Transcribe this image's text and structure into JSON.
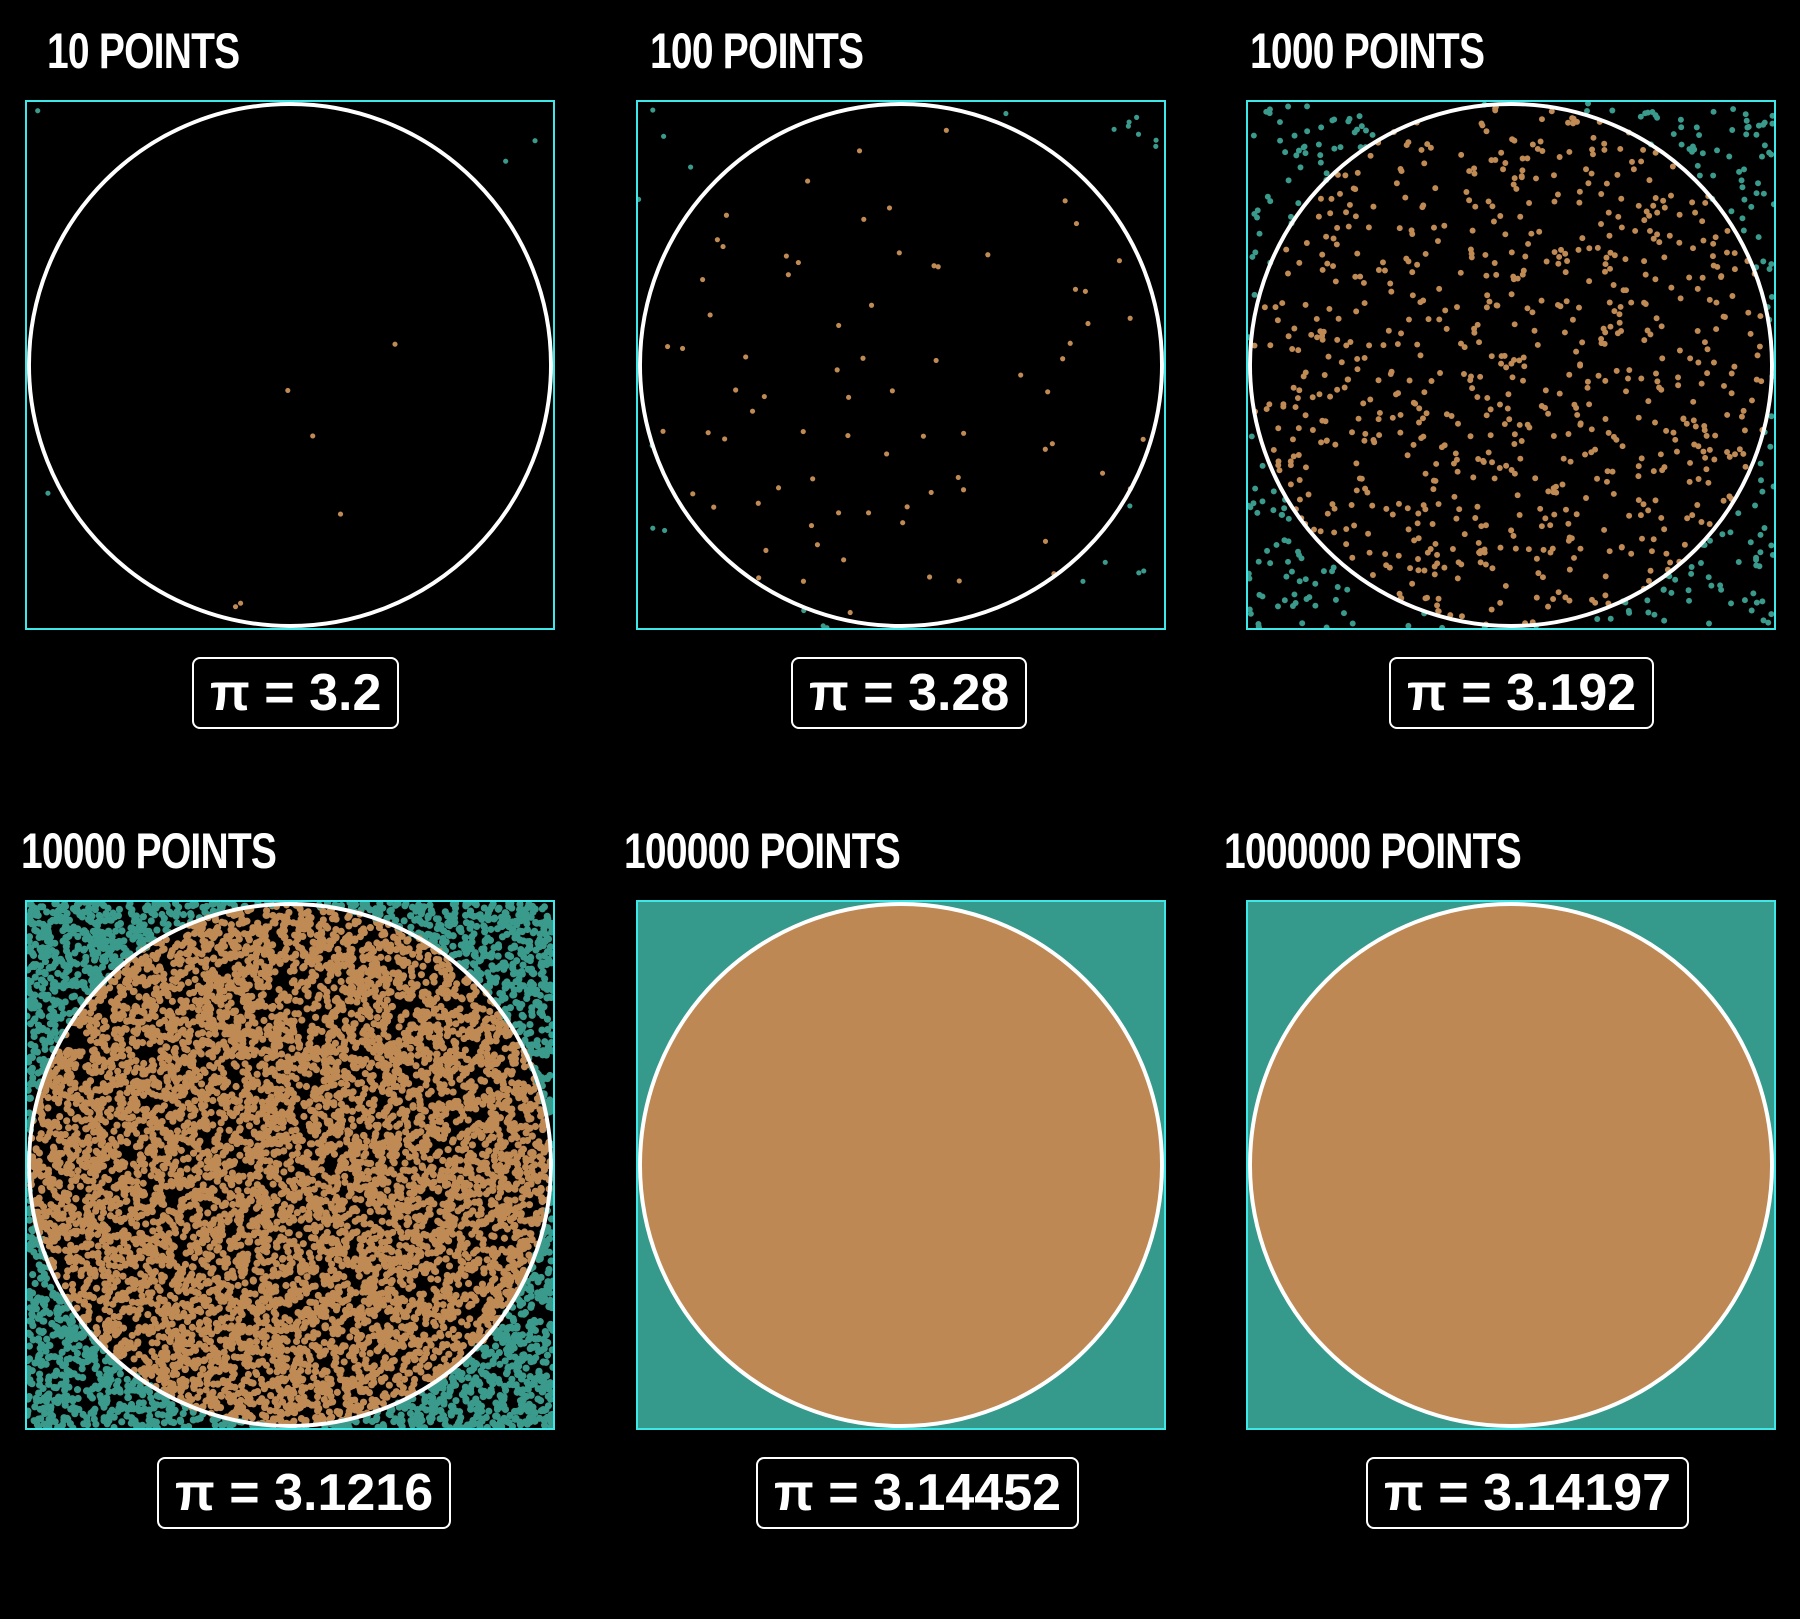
{
  "colors": {
    "inside": "#c08a55",
    "outside": "#3a9a8c",
    "inside_fill": "#bd8854",
    "outside_fill": "#359a8c",
    "border": "#3ee8e8",
    "circle": "#ffffff",
    "background": "#000000"
  },
  "panels": [
    {
      "title": "10 POINTS",
      "points": 10,
      "estimate_label": "π = 3.2",
      "estimate": 3.2
    },
    {
      "title": "100 POINTS",
      "points": 100,
      "estimate_label": "π = 3.28",
      "estimate": 3.28
    },
    {
      "title": "1000 POINTS",
      "points": 1000,
      "estimate_label": "π = 3.192",
      "estimate": 3.192
    },
    {
      "title": "10000 POINTS",
      "points": 10000,
      "estimate_label": "π = 3.1216",
      "estimate": 3.1216
    },
    {
      "title": "100000 POINTS",
      "points": 100000,
      "estimate_label": "π = 3.14452",
      "estimate": 3.14452
    },
    {
      "title": "1000000 POINTS",
      "points": 1000000,
      "estimate_label": "π = 3.14197",
      "estimate": 3.14197
    }
  ]
}
